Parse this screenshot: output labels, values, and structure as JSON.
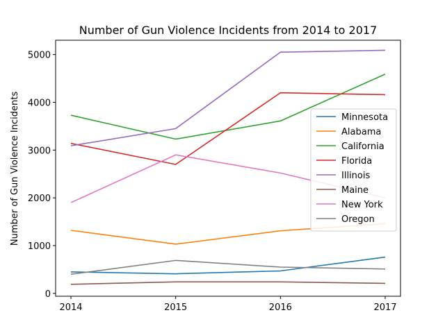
{
  "chart_data": {
    "type": "line",
    "title": "Number of Gun Violence Incidents from 2014 to 2017",
    "xlabel": "",
    "ylabel": "Number of Gun Violence Incidents",
    "x": [
      "2014",
      "2015",
      "2016",
      "2017"
    ],
    "ylim": [
      -60,
      5300
    ],
    "yticks": [
      0,
      1000,
      2000,
      3000,
      4000,
      5000
    ],
    "grid": false,
    "legend_position": "center-right",
    "series": [
      {
        "name": "Minnesota",
        "color": "#1f77b4",
        "values": [
          450,
          410,
          470,
          760
        ]
      },
      {
        "name": "Alabama",
        "color": "#ff7f0e",
        "values": [
          1320,
          1030,
          1310,
          1460
        ]
      },
      {
        "name": "California",
        "color": "#2ca02c",
        "values": [
          3730,
          3230,
          3610,
          4590
        ]
      },
      {
        "name": "Florida",
        "color": "#d62728",
        "values": [
          3140,
          2700,
          4200,
          4160
        ]
      },
      {
        "name": "Illinois",
        "color": "#9467bd",
        "values": [
          3090,
          3450,
          5050,
          5090
        ]
      },
      {
        "name": "Maine",
        "color": "#8c564b",
        "values": [
          190,
          240,
          240,
          210
        ]
      },
      {
        "name": "New York",
        "color": "#e377c2",
        "values": [
          1900,
          2900,
          2520,
          2000
        ]
      },
      {
        "name": "Oregon",
        "color": "#7f7f7f",
        "values": [
          400,
          690,
          550,
          510
        ]
      }
    ]
  }
}
